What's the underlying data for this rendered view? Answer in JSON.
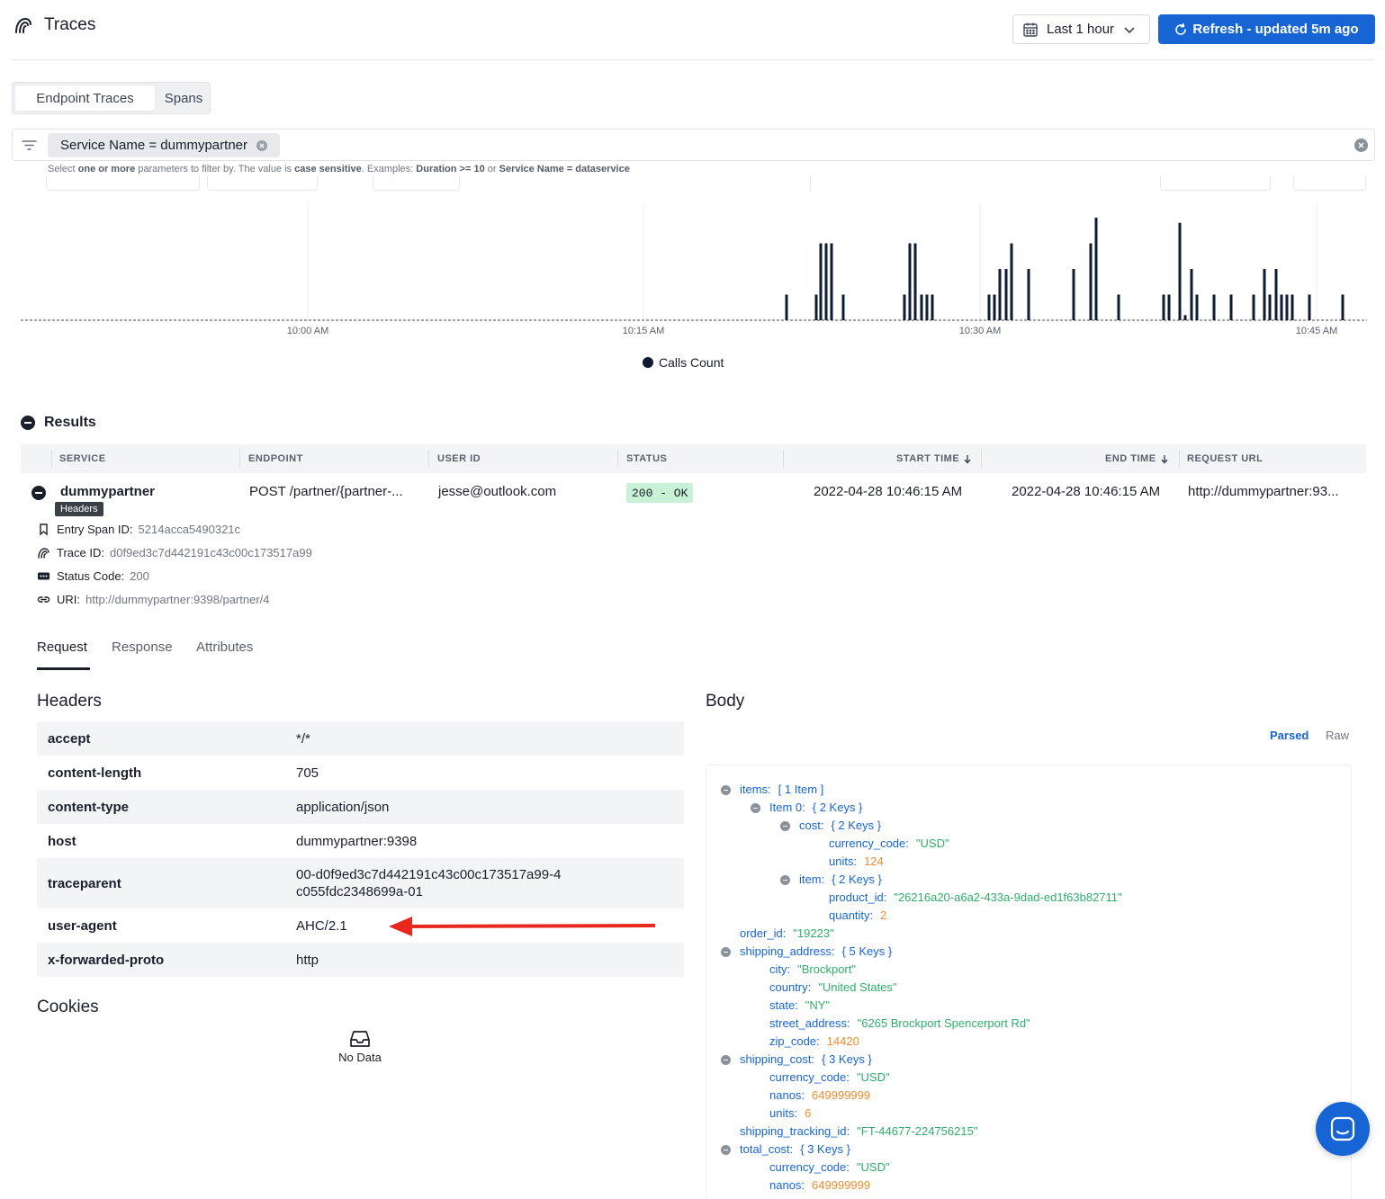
{
  "header": {
    "title": "Traces",
    "time_range": "Last 1 hour",
    "refresh_label": "Refresh - updated 5m ago"
  },
  "tabs": [
    {
      "label": "Endpoint Traces",
      "active": true
    },
    {
      "label": "Spans",
      "active": false
    }
  ],
  "filter": {
    "chip": "Service Name = dummypartner"
  },
  "chart_data": {
    "type": "bar",
    "x_ticks": [
      "10:00 AM",
      "10:15 AM",
      "10:30 AM",
      "10:45 AM"
    ],
    "legend": [
      "Calls Count"
    ],
    "series": [
      {
        "name": "Calls Count",
        "values": [
          {
            "x": 851,
            "v": 1
          },
          {
            "x": 884,
            "v": 1
          },
          {
            "x": 889,
            "v": 3
          },
          {
            "x": 895,
            "v": 3
          },
          {
            "x": 901,
            "v": 3
          },
          {
            "x": 914,
            "v": 1
          },
          {
            "x": 982,
            "v": 1
          },
          {
            "x": 988,
            "v": 3
          },
          {
            "x": 994,
            "v": 3
          },
          {
            "x": 1001,
            "v": 1
          },
          {
            "x": 1007,
            "v": 1
          },
          {
            "x": 1013,
            "v": 1
          },
          {
            "x": 1076,
            "v": 1
          },
          {
            "x": 1082,
            "v": 1
          },
          {
            "x": 1088,
            "v": 2
          },
          {
            "x": 1095,
            "v": 2
          },
          {
            "x": 1101,
            "v": 3
          },
          {
            "x": 1120,
            "v": 2
          },
          {
            "x": 1170,
            "v": 2
          },
          {
            "x": 1189,
            "v": 3
          },
          {
            "x": 1195,
            "v": 4
          },
          {
            "x": 1220,
            "v": 1
          },
          {
            "x": 1270,
            "v": 1
          },
          {
            "x": 1276,
            "v": 1
          },
          {
            "x": 1288,
            "v": 3.8
          },
          {
            "x": 1294,
            "v": 0.2
          },
          {
            "x": 1301,
            "v": 2
          },
          {
            "x": 1307,
            "v": 1
          },
          {
            "x": 1326,
            "v": 1
          },
          {
            "x": 1345,
            "v": 1
          },
          {
            "x": 1370,
            "v": 1
          },
          {
            "x": 1382,
            "v": 2
          },
          {
            "x": 1388,
            "v": 1
          },
          {
            "x": 1395,
            "v": 2
          },
          {
            "x": 1401,
            "v": 1
          },
          {
            "x": 1407,
            "v": 1
          },
          {
            "x": 1413,
            "v": 1
          },
          {
            "x": 1432,
            "v": 1
          },
          {
            "x": 1469,
            "v": 1
          }
        ]
      }
    ]
  },
  "results": {
    "title": "Results",
    "columns": [
      "SERVICE",
      "ENDPOINT",
      "USER ID",
      "STATUS",
      "START TIME",
      "END TIME",
      "REQUEST URL"
    ],
    "row": {
      "service": "dummypartner",
      "endpoint": "POST /partner/{partner-...",
      "user_id": "jesse@outlook.com",
      "status": "200 - OK",
      "start_time": "2022-04-28 10:46:15 AM",
      "end_time": "2022-04-28 10:46:15 AM",
      "request_url": "http://dummypartner:93..."
    },
    "tooltip": "Headers",
    "details": [
      {
        "label": "Entry Span ID:",
        "value": "5214acca5490321c",
        "icon": "bookmark-icon"
      },
      {
        "label": "Trace ID:",
        "value": "d0f9ed3c7d442191c43c00c173517a99",
        "icon": "trace-icon"
      },
      {
        "label": "Status Code:",
        "value": "200",
        "icon": "status-code-icon"
      },
      {
        "label": "URI:",
        "value": "http://dummypartner:9398/partner/4",
        "icon": "link-icon"
      }
    ]
  },
  "subtabs": [
    "Request",
    "Response",
    "Attributes"
  ],
  "request": {
    "headers_title": "Headers",
    "headers": [
      {
        "k": "accept",
        "v": "*/*"
      },
      {
        "k": "content-length",
        "v": "705"
      },
      {
        "k": "content-type",
        "v": "application/json"
      },
      {
        "k": "host",
        "v": "dummypartner:9398"
      },
      {
        "k": "traceparent",
        "v": "00-d0f9ed3c7d442191c43c00c173517a99-4c055fdc2348699a-01"
      },
      {
        "k": "user-agent",
        "v": "AHC/2.1"
      },
      {
        "k": "x-forwarded-proto",
        "v": "http"
      }
    ],
    "cookies_title": "Cookies",
    "no_data": "No Data",
    "body_title": "Body",
    "body_parsed": "Parsed",
    "body_raw": "Raw",
    "body_lines": [
      {
        "indent": 0,
        "collapse": true,
        "key": "items:",
        "meta": "[ 1 Item ]"
      },
      {
        "indent": 1,
        "collapse": true,
        "key": "Item 0:",
        "meta": "{ 2 Keys }"
      },
      {
        "indent": 2,
        "collapse": true,
        "key": "cost:",
        "meta": "{ 2 Keys }"
      },
      {
        "indent": 3,
        "key": "currency_code:",
        "str": "\"USD\""
      },
      {
        "indent": 3,
        "key": "units:",
        "num": "124"
      },
      {
        "indent": 2,
        "collapse": true,
        "key": "item:",
        "meta": "{ 2 Keys }"
      },
      {
        "indent": 3,
        "key": "product_id:",
        "str": "\"26216a20-a6a2-433a-9dad-ed1f63b82711\""
      },
      {
        "indent": 3,
        "key": "quantity:",
        "num": "2"
      },
      {
        "indent": 0,
        "key": "order_id:",
        "str": "\"19223\""
      },
      {
        "indent": 0,
        "collapse": true,
        "key": "shipping_address:",
        "meta": "{ 5 Keys }"
      },
      {
        "indent": 1,
        "key": "city:",
        "str": "\"Brockport\""
      },
      {
        "indent": 1,
        "key": "country:",
        "str": "\"United States\""
      },
      {
        "indent": 1,
        "key": "state:",
        "str": "\"NY\""
      },
      {
        "indent": 1,
        "key": "street_address:",
        "str": "\"6265 Brockport Spencerport Rd\""
      },
      {
        "indent": 1,
        "key": "zip_code:",
        "num": "14420"
      },
      {
        "indent": 0,
        "collapse": true,
        "key": "shipping_cost:",
        "meta": "{ 3 Keys }"
      },
      {
        "indent": 1,
        "key": "currency_code:",
        "str": "\"USD\""
      },
      {
        "indent": 1,
        "key": "nanos:",
        "num": "649999999"
      },
      {
        "indent": 1,
        "key": "units:",
        "num": "6"
      },
      {
        "indent": 0,
        "key": "shipping_tracking_id:",
        "str": "\"FT-44677-224756215\""
      },
      {
        "indent": 0,
        "collapse": true,
        "key": "total_cost:",
        "meta": "{ 3 Keys }"
      },
      {
        "indent": 1,
        "key": "currency_code:",
        "str": "\"USD\""
      },
      {
        "indent": 1,
        "key": "nanos:",
        "num": "649999999"
      }
    ]
  },
  "colors": {
    "accent": "#1764d4",
    "status_ok_bg": "#c8f1d6",
    "bar": "#0d1b33",
    "json_key": "#1764d4",
    "json_string": "#2fae6b",
    "json_number": "#ef8d2c"
  }
}
